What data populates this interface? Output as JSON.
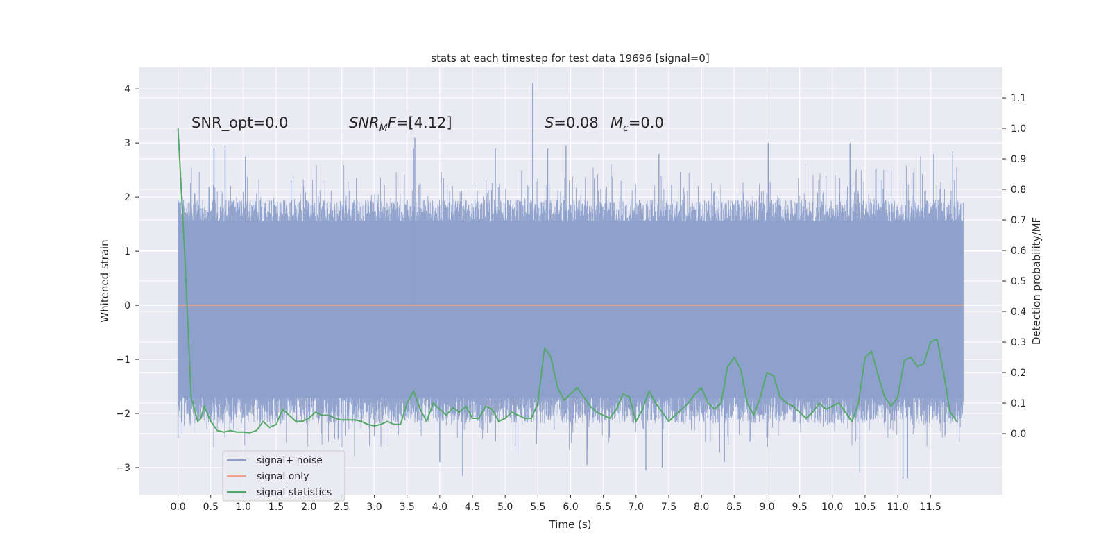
{
  "chart_data": {
    "type": "line",
    "title": "stats at each timestep for test data 19696 [signal=0]",
    "xlabel": "Time (s)",
    "ylabel_left": "Whitened strain",
    "ylabel_right": "Detection probability/MF",
    "xlim": [
      -0.6,
      12.6
    ],
    "ylim_left": [
      -3.5,
      4.4
    ],
    "ylim_right": [
      -0.2,
      1.2
    ],
    "x_ticks": [
      "0.0",
      "0.5",
      "1.0",
      "1.5",
      "2.0",
      "2.5",
      "3.0",
      "3.5",
      "4.0",
      "4.5",
      "5.0",
      "5.5",
      "6.0",
      "6.5",
      "7.0",
      "7.5",
      "8.0",
      "8.5",
      "9.0",
      "9.5",
      "10.0",
      "10.5",
      "11.0",
      "11.5"
    ],
    "y_left_ticks": [
      "4",
      "3",
      "2",
      "1",
      "0",
      "−1",
      "−2",
      "−3"
    ],
    "y_right_ticks": [
      "1.1",
      "1.0",
      "0.9",
      "0.8",
      "0.7",
      "0.6",
      "0.5",
      "0.4",
      "0.3",
      "0.2",
      "0.1",
      "0.0"
    ],
    "annotations": {
      "snr_opt": "SNR_opt=0.0",
      "snr_mf_main": "SNR",
      "snr_mf_sub": "M",
      "snr_mf_rest": "F=[4.12]",
      "s_label": "S",
      "s_value": "=0.08",
      "mc_label": "M",
      "mc_sub": "c",
      "mc_value": "=0.0"
    },
    "legend": {
      "position": "lower-left",
      "items": [
        {
          "label": "signal+ noise",
          "color": "#8da0cb"
        },
        {
          "label": "signal only",
          "color": "#e9a58a"
        },
        {
          "label": "signal statistics",
          "color": "#55a868"
        }
      ]
    },
    "series": [
      {
        "name": "signal+ noise",
        "axis": "left",
        "color": "#8da0cb",
        "x_range": [
          0.0,
          12.0
        ],
        "band_lower": -1.9,
        "band_upper": 1.7,
        "max_value": 4.1,
        "min_value": -3.2,
        "peaks": [
          {
            "x": 0.55,
            "y": 2.9
          },
          {
            "x": 0.72,
            "y": 2.95
          },
          {
            "x": 1.03,
            "y": 2.75
          },
          {
            "x": 3.62,
            "y": 3.1
          },
          {
            "x": 3.6,
            "y": 2.9
          },
          {
            "x": 4.85,
            "y": 2.9
          },
          {
            "x": 5.42,
            "y": 4.1
          },
          {
            "x": 5.65,
            "y": 2.9
          },
          {
            "x": 5.93,
            "y": 2.95
          },
          {
            "x": 7.35,
            "y": 2.8
          },
          {
            "x": 9.02,
            "y": 3.0
          },
          {
            "x": 10.27,
            "y": 3.0
          },
          {
            "x": 11.35,
            "y": 2.75
          },
          {
            "x": 11.55,
            "y": 2.8
          },
          {
            "x": 11.84,
            "y": 2.85
          }
        ],
        "troughs": [
          {
            "x": 0.0,
            "y": -2.45
          },
          {
            "x": 4.35,
            "y": -3.15
          },
          {
            "x": 6.25,
            "y": -2.95
          },
          {
            "x": 7.15,
            "y": -3.05
          },
          {
            "x": 7.4,
            "y": -3.0
          },
          {
            "x": 10.42,
            "y": -3.1
          },
          {
            "x": 11.08,
            "y": -3.2
          },
          {
            "x": 11.15,
            "y": -3.2
          },
          {
            "x": 4.0,
            "y": -2.9
          },
          {
            "x": 8.35,
            "y": -2.9
          },
          {
            "x": 2.7,
            "y": -2.8
          }
        ]
      },
      {
        "name": "signal only",
        "axis": "left",
        "color": "#e9a58a",
        "x": [
          0.0,
          12.0
        ],
        "y": [
          0.0,
          0.0
        ]
      },
      {
        "name": "signal statistics",
        "axis": "right",
        "color": "#55a868",
        "x": [
          0.0,
          0.1,
          0.2,
          0.3,
          0.35,
          0.4,
          0.5,
          0.6,
          0.7,
          0.8,
          0.9,
          1.0,
          1.1,
          1.2,
          1.3,
          1.4,
          1.5,
          1.6,
          1.7,
          1.8,
          1.9,
          2.0,
          2.1,
          2.2,
          2.3,
          2.4,
          2.5,
          2.6,
          2.7,
          2.8,
          2.9,
          3.0,
          3.1,
          3.2,
          3.3,
          3.4,
          3.5,
          3.6,
          3.7,
          3.8,
          3.9,
          4.0,
          4.1,
          4.2,
          4.3,
          4.4,
          4.5,
          4.6,
          4.7,
          4.8,
          4.9,
          5.0,
          5.1,
          5.2,
          5.3,
          5.4,
          5.5,
          5.6,
          5.7,
          5.8,
          5.9,
          6.0,
          6.1,
          6.2,
          6.3,
          6.4,
          6.5,
          6.6,
          6.7,
          6.8,
          6.9,
          7.0,
          7.1,
          7.2,
          7.3,
          7.4,
          7.5,
          7.6,
          7.7,
          7.8,
          7.9,
          8.0,
          8.1,
          8.2,
          8.3,
          8.4,
          8.5,
          8.6,
          8.7,
          8.8,
          8.9,
          9.0,
          9.1,
          9.2,
          9.3,
          9.4,
          9.5,
          9.6,
          9.7,
          9.8,
          9.9,
          10.0,
          10.1,
          10.2,
          10.3,
          10.4,
          10.5,
          10.6,
          10.7,
          10.8,
          10.9,
          11.0,
          11.1,
          11.2,
          11.3,
          11.4,
          11.5,
          11.6,
          11.7,
          11.8,
          11.9
        ],
        "y": [
          1.0,
          0.6,
          0.12,
          0.04,
          0.05,
          0.09,
          0.04,
          0.01,
          0.005,
          0.01,
          0.005,
          0.005,
          0.003,
          0.01,
          0.04,
          0.02,
          0.03,
          0.08,
          0.06,
          0.04,
          0.04,
          0.05,
          0.07,
          0.06,
          0.06,
          0.05,
          0.045,
          0.045,
          0.045,
          0.04,
          0.03,
          0.025,
          0.03,
          0.04,
          0.03,
          0.03,
          0.1,
          0.14,
          0.08,
          0.04,
          0.1,
          0.08,
          0.06,
          0.085,
          0.07,
          0.09,
          0.05,
          0.05,
          0.09,
          0.08,
          0.04,
          0.05,
          0.07,
          0.06,
          0.05,
          0.05,
          0.1,
          0.28,
          0.25,
          0.15,
          0.11,
          0.13,
          0.15,
          0.12,
          0.09,
          0.07,
          0.06,
          0.05,
          0.08,
          0.13,
          0.12,
          0.04,
          0.08,
          0.14,
          0.1,
          0.07,
          0.04,
          0.06,
          0.08,
          0.1,
          0.13,
          0.15,
          0.1,
          0.08,
          0.1,
          0.22,
          0.25,
          0.21,
          0.1,
          0.06,
          0.12,
          0.2,
          0.19,
          0.12,
          0.1,
          0.09,
          0.07,
          0.05,
          0.07,
          0.1,
          0.08,
          0.09,
          0.1,
          0.07,
          0.04,
          0.1,
          0.25,
          0.27,
          0.19,
          0.12,
          0.09,
          0.12,
          0.24,
          0.25,
          0.22,
          0.23,
          0.3,
          0.31,
          0.2,
          0.07,
          0.04
        ]
      }
    ]
  }
}
